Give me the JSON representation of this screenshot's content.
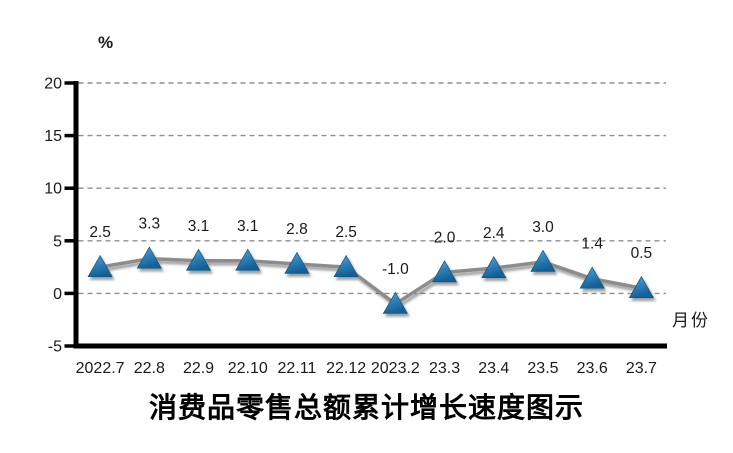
{
  "chart_data": {
    "type": "line",
    "title": "消费品零售总额累计增长速度图示",
    "ylabel": "%",
    "xlabel": "月份",
    "categories": [
      "2022.7",
      "22.8",
      "22.9",
      "22.10",
      "22.11",
      "22.12",
      "2023.2",
      "23.3",
      "23.4",
      "23.5",
      "23.6",
      "23.7"
    ],
    "values": [
      2.5,
      3.3,
      3.1,
      3.1,
      2.8,
      2.5,
      -1.0,
      2.0,
      2.4,
      3.0,
      1.4,
      0.5
    ],
    "data_labels": [
      "2.5",
      "3.3",
      "3.1",
      "3.1",
      "2.8",
      "2.5",
      "-1.0",
      "2.0",
      "2.4",
      "3.0",
      "1.4",
      "0.5"
    ],
    "ylim": [
      -5,
      20
    ],
    "yticks": [
      20,
      15,
      10,
      5,
      0,
      -5
    ],
    "grid": "horizontal-dashed",
    "legend": "none",
    "marker": "triangle-up",
    "colors": {
      "line": "#8c8c8c",
      "marker_light": "#4fa6dd",
      "marker_dark": "#135e96",
      "grid": "#8f8f8f",
      "axis": "#000000",
      "text": "#1a1a1a"
    }
  }
}
